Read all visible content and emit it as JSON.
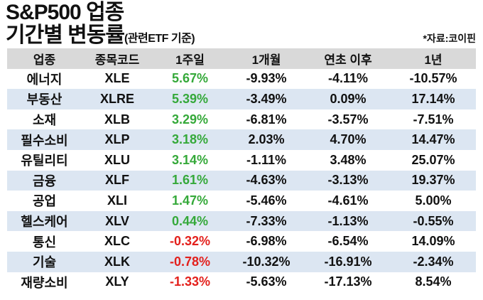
{
  "header": {
    "title_line1": "S&P500 업종",
    "title_line2": "기간별 변동률",
    "title_note": "(관련ETF 기준)",
    "source": "*자료:코이핀"
  },
  "table": {
    "columns": [
      "업종",
      "종목코드",
      "1주일",
      "1개월",
      "연초 이후",
      "1년"
    ],
    "week_positive_color": "#35a93a",
    "week_negative_color": "#e3201c",
    "rows": [
      [
        "에너지",
        "XLE",
        "5.67%",
        "-9.93%",
        "-4.11%",
        "-10.57%"
      ],
      [
        "부동산",
        "XLRE",
        "5.39%",
        "-3.49%",
        "0.09%",
        "17.14%"
      ],
      [
        "소재",
        "XLB",
        "3.29%",
        "-6.81%",
        "-3.57%",
        "-7.51%"
      ],
      [
        "필수소비",
        "XLP",
        "3.18%",
        "2.03%",
        "4.70%",
        "14.47%"
      ],
      [
        "유틸리티",
        "XLU",
        "3.14%",
        "-1.11%",
        "3.48%",
        "25.07%"
      ],
      [
        "금융",
        "XLF",
        "1.61%",
        "-4.63%",
        "-3.13%",
        "19.37%"
      ],
      [
        "공업",
        "XLI",
        "1.47%",
        "-5.46%",
        "-4.61%",
        "5.00%"
      ],
      [
        "헬스케어",
        "XLV",
        "0.44%",
        "-7.33%",
        "-1.13%",
        "-0.55%"
      ],
      [
        "통신",
        "XLC",
        "-0.32%",
        "-6.98%",
        "-6.54%",
        "14.09%"
      ],
      [
        "기술",
        "XLK",
        "-0.78%",
        "-10.32%",
        "-16.91%",
        "-2.34%"
      ],
      [
        "재량소비",
        "XLY",
        "-1.33%",
        "-5.63%",
        "-17.13%",
        "8.54%"
      ]
    ]
  }
}
